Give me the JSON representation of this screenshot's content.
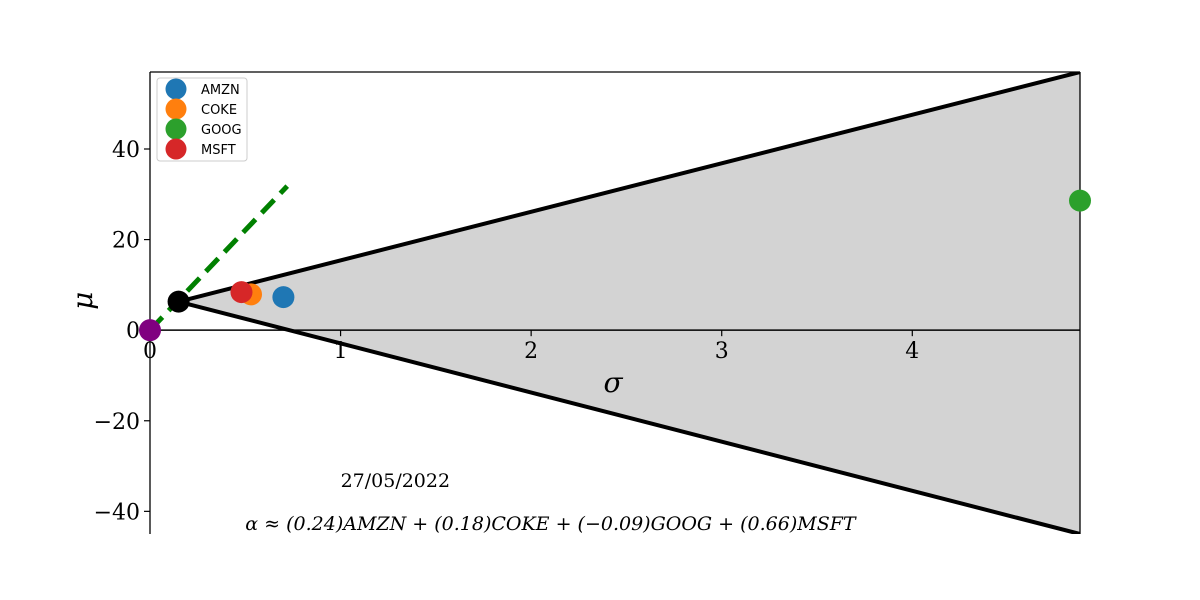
{
  "chart_data": {
    "type": "scatter",
    "xlabel": "σ",
    "ylabel": "μ",
    "xlim": [
      0,
      4.88
    ],
    "ylim": [
      -45,
      57
    ],
    "x_ticks": [
      0,
      1,
      2,
      3,
      4
    ],
    "y_ticks": [
      -40,
      -20,
      0,
      20,
      40
    ],
    "tick_labels_x": [
      "0",
      "1",
      "2",
      "3",
      "4"
    ],
    "tick_labels_y": [
      "−40",
      "−20",
      "0",
      "20",
      "40"
    ],
    "series": [
      {
        "name": "AMZN",
        "color": "#1f77b4",
        "x": [
          0.7
        ],
        "y": [
          7.3
        ]
      },
      {
        "name": "COKE",
        "color": "#ff7f0e",
        "x": [
          0.53
        ],
        "y": [
          7.9
        ]
      },
      {
        "name": "GOOG",
        "color": "#2ca02c",
        "x": [
          4.88
        ],
        "y": [
          28.6
        ]
      },
      {
        "name": "MSFT",
        "color": "#d62728",
        "x": [
          0.48
        ],
        "y": [
          8.4
        ]
      }
    ],
    "extra_points": [
      {
        "role": "risk-free",
        "color": "#800080",
        "x": 0,
        "y": 0
      },
      {
        "role": "tangent-portfolio",
        "color": "#000000",
        "x": 0.15,
        "y": 6.3
      }
    ],
    "cone": {
      "apex": [
        0.15,
        6.3
      ],
      "upper_end": [
        4.88,
        57
      ],
      "lower_end": [
        4.88,
        -45
      ],
      "fill": "#d3d3d3"
    },
    "tangent_line": {
      "color": "#008000",
      "style": "dashed",
      "x": [
        0,
        0.72
      ],
      "y": [
        0,
        31.8
      ]
    },
    "annotations": [
      {
        "text": "27/05/2022",
        "x": 1.0,
        "y": -34.6
      },
      {
        "text": "α ≈ (0.24)AMZN + (0.18)COKE + (−0.09)GOOG + (0.66)MSFT",
        "x": 0.5,
        "y": -44.1
      }
    ],
    "legend_position": "top-left",
    "grid": false
  }
}
